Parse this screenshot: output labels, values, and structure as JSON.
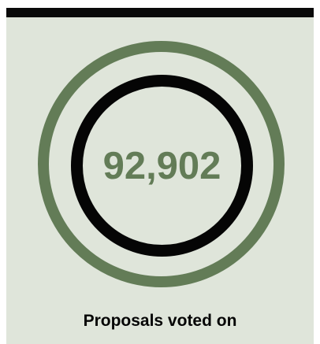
{
  "stat": {
    "value": "92,902",
    "label": "Proposals voted on"
  },
  "colors": {
    "background": "#dfe5da",
    "accent": "#637c57",
    "dark": "#050505"
  }
}
